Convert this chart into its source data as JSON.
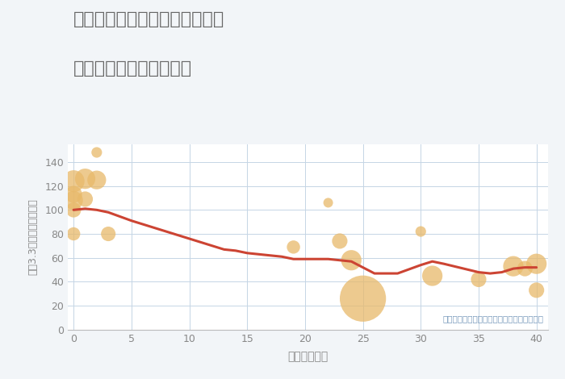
{
  "title_line1": "愛知県尾張旭市南原山町赤土の",
  "title_line2": "築年数別中古戸建て価格",
  "xlabel": "築年数（年）",
  "ylabel": "坪（3.3㎡）単価（万円）",
  "annotation": "円の大きさは、取引のあった物件面積を示す",
  "background_color": "#f2f5f8",
  "plot_bg_color": "#ffffff",
  "title_color": "#666666",
  "line_color": "#cc4433",
  "scatter_color": "#e8b96a",
  "scatter_alpha": 0.75,
  "xlim": [
    -0.5,
    41
  ],
  "ylim": [
    0,
    155
  ],
  "xticks": [
    0,
    5,
    10,
    15,
    20,
    25,
    30,
    35,
    40
  ],
  "yticks": [
    0,
    20,
    40,
    60,
    80,
    100,
    120,
    140
  ],
  "line_x": [
    0,
    1,
    2,
    3,
    5,
    8,
    10,
    13,
    14,
    15,
    17,
    18,
    19,
    20,
    22,
    23,
    24,
    25,
    26,
    28,
    30,
    31,
    32,
    35,
    36,
    37,
    38,
    39,
    40
  ],
  "line_y": [
    100,
    101,
    100,
    98,
    91,
    82,
    76,
    67,
    66,
    64,
    62,
    61,
    59,
    59,
    59,
    58,
    57,
    52,
    47,
    47,
    54,
    57,
    55,
    48,
    47,
    48,
    51,
    52,
    52
  ],
  "scatter_x": [
    0,
    0,
    0,
    0,
    0,
    1,
    1,
    2,
    2,
    3,
    19,
    22,
    23,
    24,
    25,
    30,
    31,
    35,
    38,
    39,
    40,
    40
  ],
  "scatter_y": [
    100,
    108,
    113,
    124,
    80,
    126,
    109,
    125,
    148,
    80,
    69,
    106,
    74,
    58,
    26,
    82,
    45,
    42,
    53,
    51,
    55,
    33
  ],
  "scatter_size": [
    180,
    280,
    230,
    380,
    140,
    330,
    190,
    280,
    90,
    170,
    140,
    75,
    190,
    330,
    1700,
    90,
    330,
    190,
    330,
    190,
    330,
    190
  ]
}
